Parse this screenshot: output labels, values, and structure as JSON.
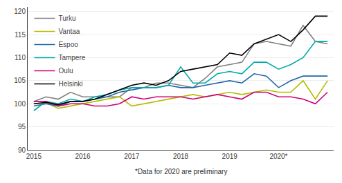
{
  "chart_data": {
    "type": "line",
    "categories": [
      "2015",
      null,
      null,
      null,
      "2016",
      null,
      null,
      null,
      "2017",
      null,
      null,
      null,
      "2018",
      null,
      null,
      null,
      "2019",
      null,
      null,
      null,
      "2020*",
      null,
      null,
      null,
      null
    ],
    "series": [
      {
        "name": "Turku",
        "color": "#808080",
        "values": [
          100.5,
          101.5,
          101.0,
          102.5,
          101.5,
          101.5,
          101.5,
          101.5,
          103.5,
          103.5,
          104.5,
          104.5,
          104.0,
          103.5,
          105.5,
          108.0,
          108.5,
          109.0,
          113.0,
          113.5,
          113.0,
          112.5,
          117.0,
          113.5,
          113.0
        ]
      },
      {
        "name": "Vantaa",
        "color": "#b5bd00",
        "values": [
          100.0,
          100.2,
          99.0,
          99.5,
          100.0,
          100.5,
          101.0,
          101.5,
          99.5,
          100.0,
          100.5,
          101.0,
          101.5,
          102.0,
          101.5,
          102.0,
          102.5,
          102.0,
          102.5,
          103.0,
          102.5,
          102.5,
          105.0,
          101.0,
          105.0
        ]
      },
      {
        "name": "Espoo",
        "color": "#2166ac",
        "values": [
          99.5,
          100.0,
          99.5,
          100.5,
          100.5,
          101.0,
          101.5,
          102.5,
          103.0,
          103.5,
          103.5,
          104.0,
          103.5,
          103.5,
          104.0,
          104.5,
          105.0,
          104.5,
          106.5,
          106.0,
          103.5,
          105.0,
          106.0,
          106.0,
          106.0
        ]
      },
      {
        "name": "Tampere",
        "color": "#00aaaa",
        "values": [
          98.5,
          100.5,
          100.0,
          101.0,
          100.5,
          101.5,
          102.0,
          103.0,
          103.5,
          103.5,
          103.5,
          104.0,
          108.0,
          104.5,
          104.5,
          106.5,
          107.0,
          106.5,
          109.0,
          109.0,
          107.5,
          108.5,
          110.0,
          113.5,
          113.5
        ]
      },
      {
        "name": "Oulu",
        "color": "#cc0077",
        "values": [
          100.5,
          100.5,
          99.5,
          100.0,
          100.0,
          99.5,
          99.5,
          100.0,
          101.5,
          101.0,
          101.5,
          101.5,
          101.5,
          101.0,
          101.5,
          102.0,
          101.5,
          101.0,
          102.5,
          102.5,
          101.5,
          101.5,
          101.0,
          100.0,
          102.5
        ]
      },
      {
        "name": "Helsinki",
        "color": "#000000",
        "values": [
          100.0,
          100.3,
          99.8,
          100.5,
          100.5,
          101.0,
          102.0,
          103.0,
          104.0,
          104.5,
          104.0,
          105.0,
          107.0,
          107.5,
          108.0,
          108.5,
          111.0,
          110.5,
          113.0,
          114.0,
          115.0,
          113.5,
          116.0,
          119.0,
          119.0
        ]
      }
    ],
    "ylim": [
      90,
      121
    ],
    "yticks": [
      90,
      95,
      100,
      105,
      110,
      115,
      120
    ],
    "grid": true,
    "legend": "upper left",
    "annotations": [
      "*Data for 2020 are preliminary"
    ]
  }
}
